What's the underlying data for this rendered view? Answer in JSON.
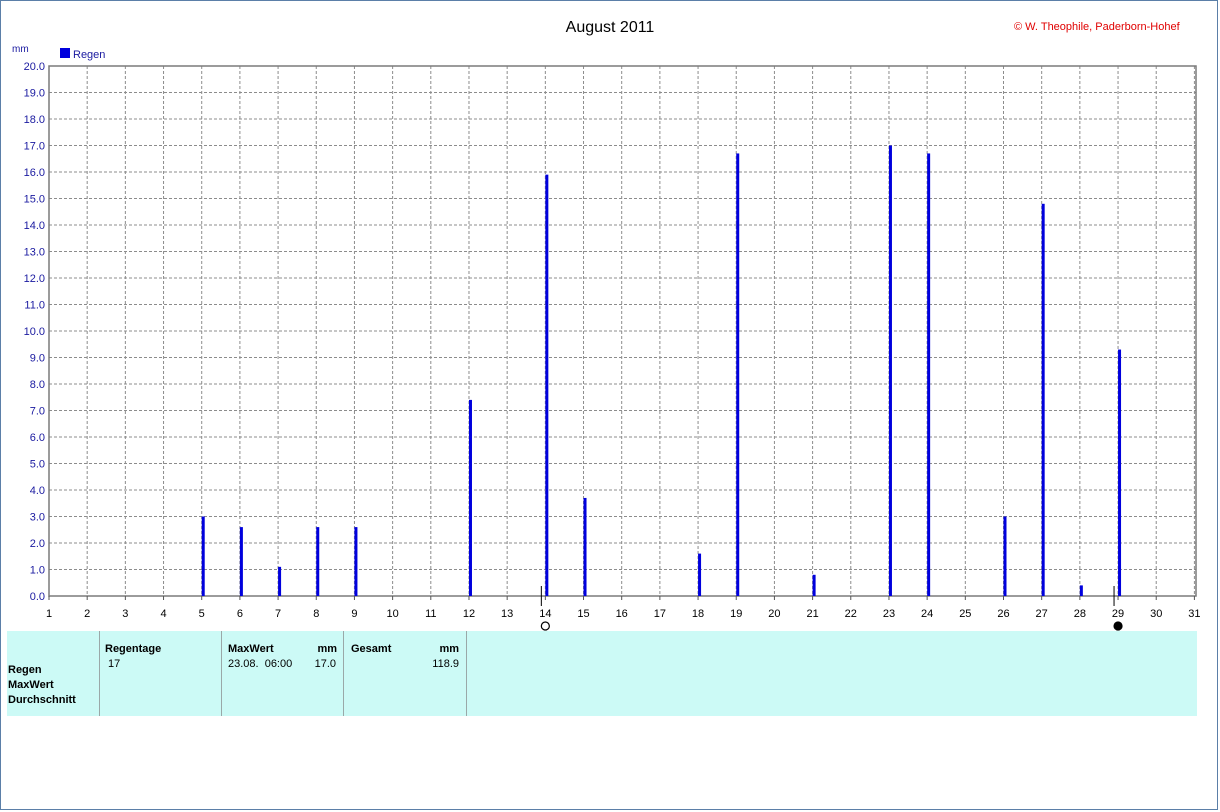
{
  "title": "August 2011",
  "copyright": "© W. Theophile, Paderborn-Hohef",
  "chart_data": {
    "type": "bar",
    "title": "August 2011",
    "ylabel": "mm",
    "xlabel": "",
    "ylim": [
      0,
      20
    ],
    "y_ticks": [
      "0.0",
      "1.0",
      "2.0",
      "3.0",
      "4.0",
      "5.0",
      "6.0",
      "7.0",
      "8.0",
      "9.0",
      "10.0",
      "11.0",
      "12.0",
      "13.0",
      "14.0",
      "15.0",
      "16.0",
      "17.0",
      "18.0",
      "19.0",
      "20.0"
    ],
    "x_ticks": [
      "1",
      "2",
      "3",
      "4",
      "5",
      "6",
      "7",
      "8",
      "9",
      "10",
      "11",
      "12",
      "13",
      "14",
      "15",
      "16",
      "17",
      "18",
      "19",
      "20",
      "21",
      "22",
      "23",
      "24",
      "25",
      "26",
      "27",
      "28",
      "29",
      "30",
      "31"
    ],
    "grid": true,
    "legend": "top-left",
    "series": [
      {
        "name": "Regen",
        "color": "#0000dd",
        "points": [
          {
            "day": 5,
            "value": 3.0
          },
          {
            "day": 6,
            "value": 2.6
          },
          {
            "day": 7,
            "value": 1.1
          },
          {
            "day": 8,
            "value": 2.6
          },
          {
            "day": 9,
            "value": 2.6
          },
          {
            "day": 12,
            "value": 7.4
          },
          {
            "day": 14,
            "value": 15.9
          },
          {
            "day": 15,
            "value": 3.7
          },
          {
            "day": 18,
            "value": 1.6
          },
          {
            "day": 19,
            "value": 16.7
          },
          {
            "day": 21,
            "value": 0.8
          },
          {
            "day": 23,
            "value": 17.0
          },
          {
            "day": 24,
            "value": 16.7
          },
          {
            "day": 26,
            "value": 3.0
          },
          {
            "day": 27,
            "value": 14.8
          },
          {
            "day": 28,
            "value": 0.4
          },
          {
            "day": 29,
            "value": 9.3
          }
        ]
      }
    ],
    "moon_phases": [
      {
        "day": 14,
        "phase": "full-moon"
      },
      {
        "day": 29,
        "phase": "new-moon"
      }
    ]
  },
  "stats": {
    "row_labels": [
      "Regen",
      "MaxWert",
      "Durchschnitt"
    ],
    "regentage": {
      "header": "Regentage",
      "value": "17"
    },
    "maxwert": {
      "header": "MaxWert",
      "unit": "mm",
      "date": "23.08.  06:00",
      "value": "17.0"
    },
    "gesamt": {
      "header": "Gesamt",
      "unit": "mm",
      "value": "118.9"
    }
  }
}
